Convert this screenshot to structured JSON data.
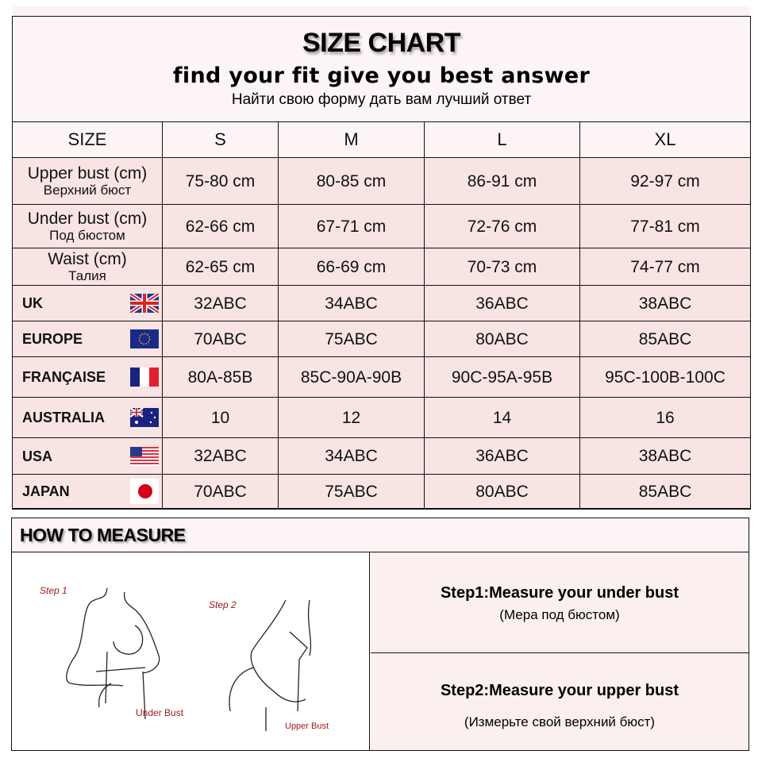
{
  "header": {
    "title": "SIZE CHART",
    "subtitle": "find your fit give you best answer",
    "subtitle_ru": "Найти свою форму дать вам лучший ответ"
  },
  "table": {
    "columns": [
      "SIZE",
      "S",
      "M",
      "L",
      "XL"
    ],
    "measure_rows": [
      {
        "label": "Upper bust (cm)",
        "label_ru": "Верхний бюст",
        "values": [
          "75-80 cm",
          "80-85 cm",
          "86-91 cm",
          "92-97 cm"
        ]
      },
      {
        "label": "Under bust (cm)",
        "label_ru": "Под бюстом",
        "values": [
          "62-66 cm",
          "67-71 cm",
          "72-76 cm",
          "77-81 cm"
        ]
      },
      {
        "label": "Waist (cm)",
        "label_ru": "Талия",
        "values": [
          "62-65 cm",
          "66-69 cm",
          "70-73 cm",
          "74-77 cm"
        ]
      }
    ],
    "country_rows": [
      {
        "label": "UK",
        "flag": "uk-flag-icon",
        "values": [
          "32ABC",
          "34ABC",
          "36ABC",
          "38ABC"
        ]
      },
      {
        "label": "EUROPE",
        "flag": "eu-flag-icon",
        "values": [
          "70ABC",
          "75ABC",
          "80ABC",
          "85ABC"
        ]
      },
      {
        "label": "FRANÇAISE",
        "flag": "france-flag-icon",
        "values": [
          "80A-85B",
          "85C-90A-90B",
          "90C-95A-95B",
          "95C-100B-100C"
        ]
      },
      {
        "label": "AUSTRALIA",
        "flag": "australia-flag-icon",
        "values": [
          "10",
          "12",
          "14",
          "16"
        ]
      },
      {
        "label": "USA",
        "flag": "usa-flag-icon",
        "values": [
          "32ABC",
          "34ABC",
          "36ABC",
          "38ABC"
        ]
      },
      {
        "label": "JAPAN",
        "flag": "japan-flag-icon",
        "values": [
          "70ABC",
          "75ABC",
          "80ABC",
          "85ABC"
        ]
      }
    ]
  },
  "measure": {
    "title": "HOW TO MEASURE",
    "illustration": {
      "step1": "Step 1",
      "step2": "Step 2",
      "under": "Under Bust",
      "upper": "Upper Bust"
    },
    "step1": {
      "title": "Step1:Measure your under bust",
      "ru": "(Мера под бюстом)"
    },
    "step2": {
      "title": "Step2:Measure your upper bust",
      "ru": "(Измерьте свой верхний бюст)"
    }
  },
  "colors": {
    "row_bg": "#f9e4e4",
    "header_bg": "#fdf5f5",
    "label_red": "#a01c1c"
  }
}
